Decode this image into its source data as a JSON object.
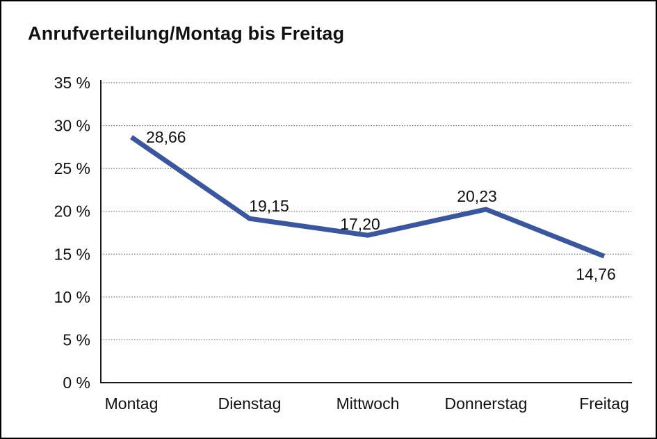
{
  "title": "Anrufverteilung/Montag bis Freitag",
  "chart_data": {
    "type": "line",
    "title": "Anrufverteilung/Montag bis Freitag",
    "categories": [
      "Montag",
      "Dienstag",
      "Mittwoch",
      "Donnerstag",
      "Freitag"
    ],
    "values": [
      28.66,
      19.15,
      17.2,
      20.23,
      14.76
    ],
    "value_labels": [
      "28,66",
      "19,15",
      "17,20",
      "20,23",
      "14,76"
    ],
    "xlabel": "",
    "ylabel": "",
    "ylim": [
      0,
      35
    ],
    "ytick_step": 5,
    "ytick_labels": [
      "0 %",
      "5 %",
      "10 %",
      "15 %",
      "20 %",
      "25 %",
      "30 %",
      "35 %"
    ],
    "grid": "horizontal-dotted",
    "legend": "none"
  },
  "colors": {
    "line": "#39569F",
    "grid": "#4d4d4d",
    "axis": "#1a1a1a",
    "text": "#111111",
    "background": "#ffffff",
    "border": "#000000"
  }
}
